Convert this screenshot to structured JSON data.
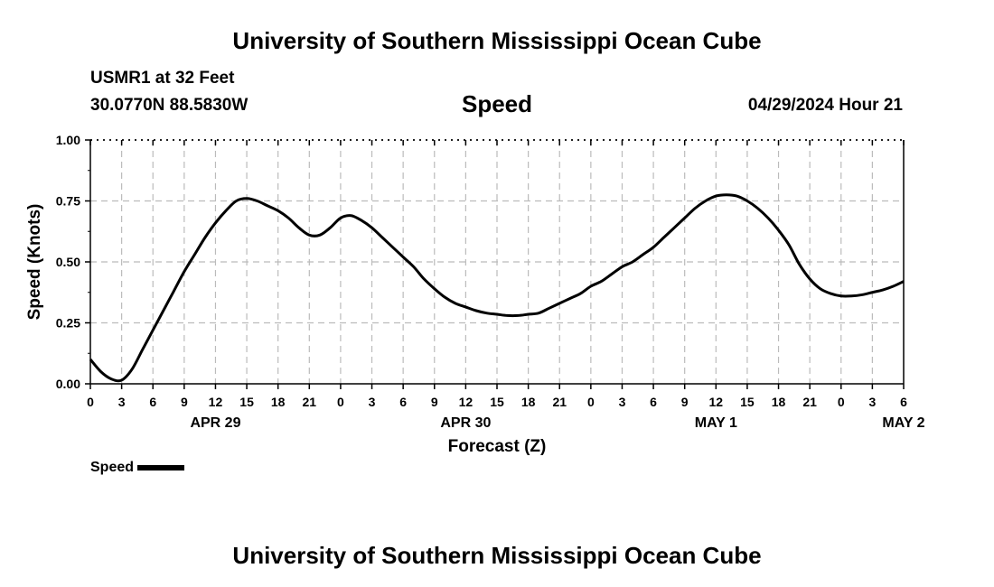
{
  "header": {
    "title": "University of Southern Mississippi Ocean Cube",
    "station": "USMR1 at 32 Feet",
    "coordinates": "30.0770N  88.5830W",
    "chart_title": "Speed",
    "run_time": "04/29/2024 Hour 21"
  },
  "footer": {
    "title": "University of Southern Mississippi Ocean Cube"
  },
  "legend": {
    "label": "Speed"
  },
  "chart_data": {
    "type": "line",
    "title": "Speed",
    "xlabel": "Forecast (Z)",
    "ylabel": "Speed (Knots)",
    "ylim": [
      0,
      1.0
    ],
    "xlim_hours_from_apr29_00z": [
      0,
      78
    ],
    "grid": true,
    "legend_position": "bottom-left",
    "y_ticks": [
      "0.00",
      "0.25",
      "0.50",
      "0.75",
      "1.00"
    ],
    "x_ticks": [
      "0",
      "3",
      "6",
      "9",
      "12",
      "15",
      "18",
      "21",
      "0",
      "3",
      "6",
      "9",
      "12",
      "15",
      "18",
      "21",
      "0",
      "3",
      "6",
      "9",
      "12",
      "15",
      "18",
      "21",
      "0",
      "3",
      "6"
    ],
    "date_labels": [
      {
        "label": "APR 29",
        "hour": 12
      },
      {
        "label": "APR 30",
        "hour": 36
      },
      {
        "label": "MAY 1",
        "hour": 60
      },
      {
        "label": "MAY 2",
        "hour": 78
      }
    ],
    "series": [
      {
        "name": "Speed",
        "color": "#000000",
        "x": [
          0,
          1,
          2,
          3,
          4,
          5,
          6,
          7,
          8,
          9,
          10,
          11,
          12,
          13,
          14,
          15,
          16,
          17,
          18,
          19,
          20,
          21,
          22,
          23,
          24,
          25,
          26,
          27,
          28,
          29,
          30,
          31,
          32,
          33,
          34,
          35,
          36,
          37,
          38,
          39,
          40,
          41,
          42,
          43,
          44,
          45,
          46,
          47,
          48,
          49,
          50,
          51,
          52,
          53,
          54,
          55,
          56,
          57,
          58,
          59,
          60,
          61,
          62,
          63,
          64,
          65,
          66,
          67,
          68,
          69,
          70,
          71,
          72,
          73,
          74,
          75,
          76,
          77,
          78
        ],
        "values": [
          0.1,
          0.05,
          0.02,
          0.015,
          0.06,
          0.14,
          0.22,
          0.3,
          0.38,
          0.46,
          0.53,
          0.6,
          0.66,
          0.71,
          0.75,
          0.76,
          0.75,
          0.73,
          0.71,
          0.68,
          0.64,
          0.61,
          0.61,
          0.64,
          0.68,
          0.69,
          0.67,
          0.64,
          0.6,
          0.56,
          0.52,
          0.48,
          0.43,
          0.39,
          0.355,
          0.33,
          0.315,
          0.3,
          0.29,
          0.285,
          0.28,
          0.28,
          0.285,
          0.29,
          0.31,
          0.33,
          0.35,
          0.37,
          0.4,
          0.42,
          0.45,
          0.48,
          0.5,
          0.53,
          0.56,
          0.6,
          0.64,
          0.68,
          0.72,
          0.75,
          0.77,
          0.775,
          0.77,
          0.75,
          0.72,
          0.68,
          0.63,
          0.57,
          0.49,
          0.43,
          0.39,
          0.37,
          0.36,
          0.36,
          0.365,
          0.375,
          0.385,
          0.4,
          0.42
        ]
      }
    ]
  }
}
